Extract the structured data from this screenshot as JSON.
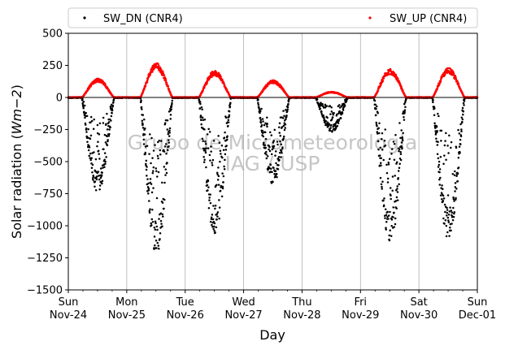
{
  "chart_data": {
    "type": "scatter",
    "title": "",
    "xlabel": "Day",
    "ylabel_parts": {
      "main": "Solar radiation (",
      "unit": "Wm−2",
      "close": ")"
    },
    "ylim": [
      -1500,
      500
    ],
    "yticks": [
      500,
      250,
      0,
      -250,
      -500,
      -750,
      -1000,
      -1250,
      -1500
    ],
    "ytick_labels": [
      "500",
      "250",
      "0",
      "−250",
      "−500",
      "−750",
      "−1000",
      "−1250",
      "−1500"
    ],
    "xlim": [
      "2024-11-24",
      "2024-12-01"
    ],
    "xticks": [
      {
        "day": "Sun",
        "date": "Nov-24"
      },
      {
        "day": "Mon",
        "date": "Nov-25"
      },
      {
        "day": "Tue",
        "date": "Nov-26"
      },
      {
        "day": "Wed",
        "date": "Nov-27"
      },
      {
        "day": "Thu",
        "date": "Nov-28"
      },
      {
        "day": "Fri",
        "date": "Nov-29"
      },
      {
        "day": "Sat",
        "date": "Nov-30"
      },
      {
        "day": "Sun",
        "date": "Dec-01"
      }
    ],
    "grid": "vertical",
    "legend_placement": "top (above plot)",
    "watermark": [
      "Grupo de Micrometeorologia",
      "IAG / USP"
    ],
    "series": [
      {
        "name": "SW_DN (CNR4)",
        "color": "#000000",
        "daily_minimum": [
          -740,
          -1230,
          -1080,
          -680,
          -270,
          -1140,
          -1110
        ]
      },
      {
        "name": "SW_UP (CNR4)",
        "color": "#ff0000",
        "daily_maximum": [
          150,
          270,
          210,
          135,
          45,
          225,
          230
        ]
      }
    ],
    "zero_line": 0
  }
}
